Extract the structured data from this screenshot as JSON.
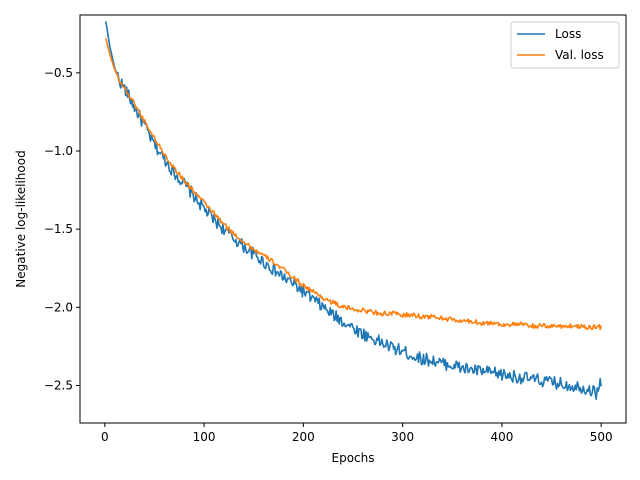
{
  "chart_data": {
    "type": "line",
    "title": "",
    "xlabel": "Epochs",
    "ylabel": "Negative log-likelihood",
    "xlim": [
      -25,
      525
    ],
    "ylim": [
      -2.74,
      -0.13
    ],
    "xticks": [
      0,
      100,
      200,
      300,
      400,
      500
    ],
    "yticks": [
      -2.5,
      -2.0,
      -1.5,
      -1.0,
      -0.5
    ],
    "xtick_labels": [
      "0",
      "100",
      "200",
      "300",
      "400",
      "500"
    ],
    "ytick_labels": [
      "−2.5",
      "−2.0",
      "−1.5",
      "−1.0",
      "−0.5"
    ],
    "grid": false,
    "legend_position": "top-right",
    "x": [
      1,
      5,
      10,
      15,
      20,
      25,
      30,
      40,
      50,
      60,
      70,
      80,
      90,
      100,
      110,
      120,
      130,
      140,
      150,
      160,
      170,
      180,
      190,
      200,
      210,
      220,
      230,
      240,
      250,
      260,
      270,
      280,
      290,
      300,
      310,
      320,
      330,
      340,
      350,
      360,
      370,
      380,
      390,
      400,
      410,
      420,
      430,
      440,
      450,
      460,
      470,
      480,
      490,
      495,
      500
    ],
    "series": [
      {
        "name": "Loss",
        "color": "#1f77b4",
        "noise": 0.04,
        "values": [
          -0.17,
          -0.33,
          -0.47,
          -0.55,
          -0.6,
          -0.66,
          -0.72,
          -0.84,
          -0.96,
          -1.05,
          -1.14,
          -1.21,
          -1.29,
          -1.37,
          -1.44,
          -1.5,
          -1.56,
          -1.61,
          -1.66,
          -1.71,
          -1.76,
          -1.81,
          -1.85,
          -1.9,
          -1.95,
          -2.0,
          -2.05,
          -2.09,
          -2.13,
          -2.17,
          -2.2,
          -2.23,
          -2.26,
          -2.28,
          -2.31,
          -2.33,
          -2.34,
          -2.36,
          -2.37,
          -2.39,
          -2.4,
          -2.41,
          -2.42,
          -2.43,
          -2.44,
          -2.45,
          -2.46,
          -2.47,
          -2.48,
          -2.49,
          -2.5,
          -2.51,
          -2.53,
          -2.55,
          -2.47
        ]
      },
      {
        "name": "Val. loss",
        "color": "#ff7f0e",
        "noise": 0.015,
        "values": [
          -0.28,
          -0.38,
          -0.48,
          -0.55,
          -0.6,
          -0.65,
          -0.7,
          -0.81,
          -0.92,
          -1.02,
          -1.11,
          -1.19,
          -1.26,
          -1.33,
          -1.4,
          -1.47,
          -1.53,
          -1.58,
          -1.63,
          -1.67,
          -1.71,
          -1.76,
          -1.81,
          -1.86,
          -1.9,
          -1.94,
          -1.97,
          -2.0,
          -2.01,
          -2.02,
          -2.03,
          -2.04,
          -2.04,
          -2.05,
          -2.05,
          -2.06,
          -2.06,
          -2.07,
          -2.08,
          -2.09,
          -2.09,
          -2.1,
          -2.1,
          -2.11,
          -2.11,
          -2.11,
          -2.12,
          -2.12,
          -2.12,
          -2.12,
          -2.12,
          -2.12,
          -2.13,
          -2.12,
          -2.13
        ]
      }
    ]
  }
}
